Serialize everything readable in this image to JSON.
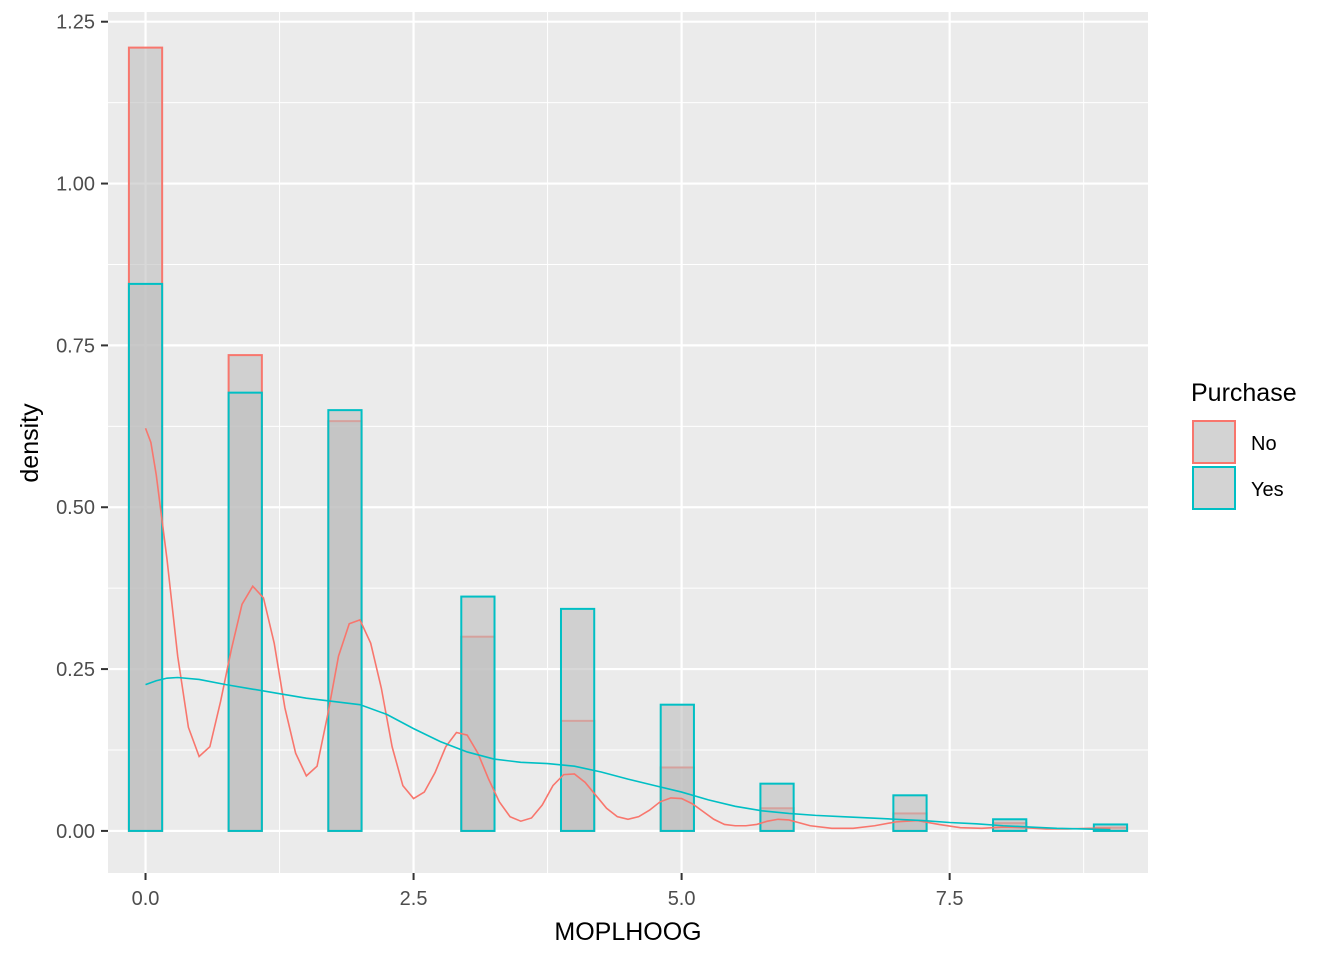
{
  "chart_data": {
    "type": "bar",
    "subtype": "histogram with density curves",
    "title": "",
    "xlabel": "MOPLHOOG",
    "ylabel": "density",
    "xlim": [
      -0.35,
      9.35
    ],
    "ylim": [
      -0.065,
      1.265
    ],
    "x_ticks": [
      0,
      2.5,
      5,
      7.5
    ],
    "x_tick_labels": [
      "0.0",
      "2.5",
      "5.0",
      "7.5"
    ],
    "y_ticks": [
      0,
      0.25,
      0.5,
      0.75,
      1.0,
      1.25
    ],
    "y_tick_labels": [
      "0.00",
      "0.25",
      "0.50",
      "0.75",
      "1.00",
      "1.25"
    ],
    "grid": true,
    "bin_width": 0.31,
    "bin_centers": [
      0,
      0.93,
      1.86,
      3.1,
      4.03,
      4.96,
      5.89,
      7.13,
      8.06,
      9.0
    ],
    "series": [
      {
        "name": "No",
        "color": "#F8766D",
        "histogram": [
          1.21,
          0.735,
          0.633,
          0.3,
          0.17,
          0.098,
          0.035,
          0.027,
          0.012,
          0.005
        ],
        "density_curve": {
          "x": [
            0,
            0.05,
            0.1,
            0.2,
            0.3,
            0.4,
            0.5,
            0.6,
            0.7,
            0.8,
            0.9,
            1.0,
            1.1,
            1.2,
            1.3,
            1.4,
            1.5,
            1.6,
            1.7,
            1.8,
            1.9,
            2.0,
            2.1,
            2.2,
            2.3,
            2.4,
            2.5,
            2.6,
            2.7,
            2.8,
            2.9,
            3.0,
            3.1,
            3.2,
            3.3,
            3.4,
            3.5,
            3.6,
            3.7,
            3.8,
            3.9,
            4.0,
            4.1,
            4.2,
            4.3,
            4.4,
            4.5,
            4.6,
            4.7,
            4.8,
            4.9,
            5.0,
            5.1,
            5.2,
            5.3,
            5.4,
            5.5,
            5.6,
            5.7,
            5.8,
            5.9,
            6.0,
            6.2,
            6.4,
            6.6,
            6.8,
            7.0,
            7.2,
            7.4,
            7.6,
            7.8,
            8.0,
            8.2,
            8.4,
            8.6,
            8.8,
            9.0
          ],
          "y": [
            0.622,
            0.6,
            0.55,
            0.42,
            0.27,
            0.16,
            0.115,
            0.13,
            0.2,
            0.28,
            0.35,
            0.378,
            0.36,
            0.29,
            0.19,
            0.12,
            0.085,
            0.1,
            0.18,
            0.27,
            0.32,
            0.326,
            0.29,
            0.22,
            0.13,
            0.07,
            0.05,
            0.06,
            0.09,
            0.13,
            0.152,
            0.148,
            0.12,
            0.08,
            0.045,
            0.022,
            0.015,
            0.02,
            0.04,
            0.07,
            0.087,
            0.088,
            0.075,
            0.055,
            0.035,
            0.022,
            0.018,
            0.022,
            0.032,
            0.045,
            0.051,
            0.05,
            0.042,
            0.03,
            0.018,
            0.01,
            0.008,
            0.008,
            0.01,
            0.015,
            0.018,
            0.017,
            0.008,
            0.004,
            0.004,
            0.008,
            0.014,
            0.016,
            0.01,
            0.005,
            0.004,
            0.006,
            0.005,
            0.003,
            0.003,
            0.004,
            0.004
          ]
        }
      },
      {
        "name": "Yes",
        "color": "#00BFC4",
        "histogram": [
          0.845,
          0.677,
          0.65,
          0.362,
          0.343,
          0.195,
          0.073,
          0.055,
          0.018,
          0.01
        ],
        "density_curve": {
          "x": [
            0,
            0.1,
            0.2,
            0.3,
            0.5,
            0.75,
            1.0,
            1.25,
            1.5,
            1.75,
            2.0,
            2.25,
            2.5,
            2.75,
            3.0,
            3.25,
            3.5,
            3.75,
            4.0,
            4.25,
            4.5,
            4.75,
            5.0,
            5.25,
            5.5,
            5.75,
            6.0,
            6.25,
            6.5,
            6.75,
            7.0,
            7.25,
            7.5,
            7.75,
            8.0,
            8.25,
            8.5,
            8.75,
            9.0
          ],
          "y": [
            0.226,
            0.232,
            0.236,
            0.237,
            0.234,
            0.226,
            0.219,
            0.212,
            0.205,
            0.2,
            0.195,
            0.18,
            0.158,
            0.138,
            0.122,
            0.111,
            0.106,
            0.104,
            0.1,
            0.091,
            0.08,
            0.07,
            0.06,
            0.048,
            0.038,
            0.031,
            0.027,
            0.024,
            0.022,
            0.02,
            0.018,
            0.016,
            0.013,
            0.011,
            0.008,
            0.006,
            0.004,
            0.003,
            0.002
          ]
        }
      }
    ],
    "legend": {
      "title": "Purchase",
      "placement": "right",
      "items": [
        "No",
        "Yes"
      ]
    },
    "colors": {
      "panel_background": "#EBEBEB",
      "gridline": "#FFFFFF",
      "bar_fill": "#BEBEBE",
      "no": "#F8766D",
      "yes": "#00BFC4"
    }
  }
}
